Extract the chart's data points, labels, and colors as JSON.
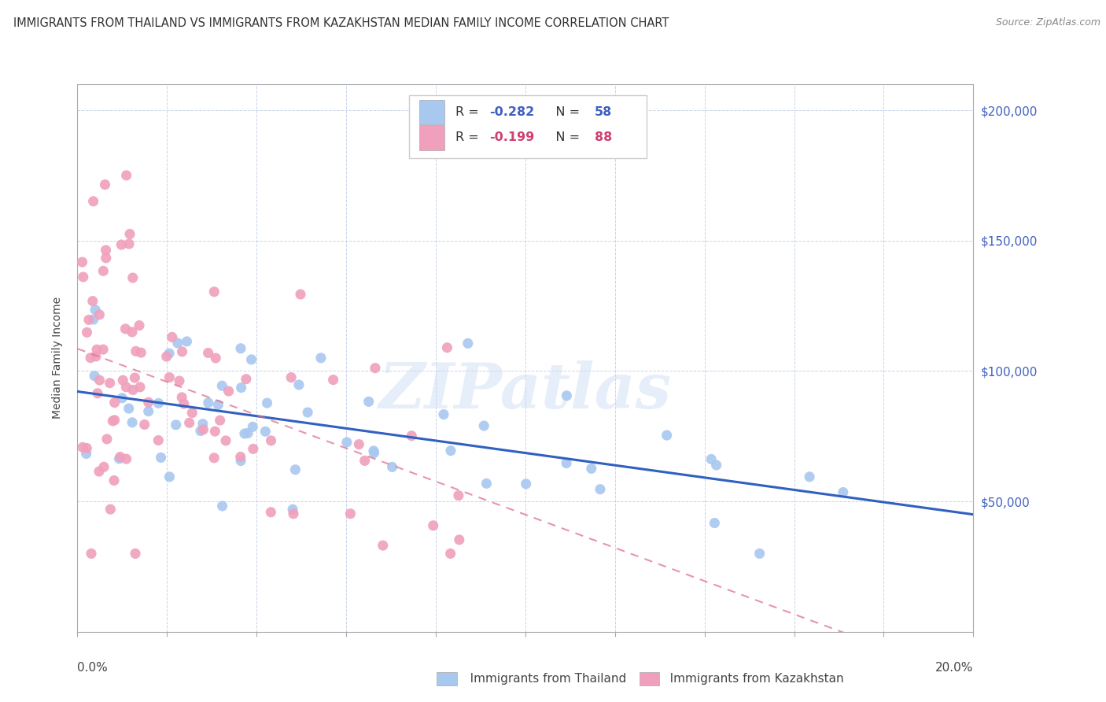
{
  "title": "IMMIGRANTS FROM THAILAND VS IMMIGRANTS FROM KAZAKHSTAN MEDIAN FAMILY INCOME CORRELATION CHART",
  "source": "Source: ZipAtlas.com",
  "ylabel": "Median Family Income",
  "xmin": 0.0,
  "xmax": 0.2,
  "ymin": 0,
  "ymax": 210000,
  "yticks": [
    0,
    50000,
    100000,
    150000,
    200000
  ],
  "ytick_labels": [
    "",
    "$50,000",
    "$100,000",
    "$150,000",
    "$200,000"
  ],
  "thailand_color": "#a8c8f0",
  "kazakhstan_color": "#f0a0bc",
  "thailand_line_color": "#3060c0",
  "kazakhstan_line_color": "#e07090",
  "background_color": "#ffffff",
  "grid_color": "#c8d4e8",
  "watermark_text": "ZIPatlas",
  "r_thai": "-0.282",
  "n_thai": "58",
  "r_kaz": "-0.199",
  "n_kaz": "88",
  "legend_text_color_blue": "#4060c0",
  "legend_text_color_pink": "#d04070",
  "legend_label_color": "#444444",
  "source_color": "#888888",
  "title_color": "#333333"
}
